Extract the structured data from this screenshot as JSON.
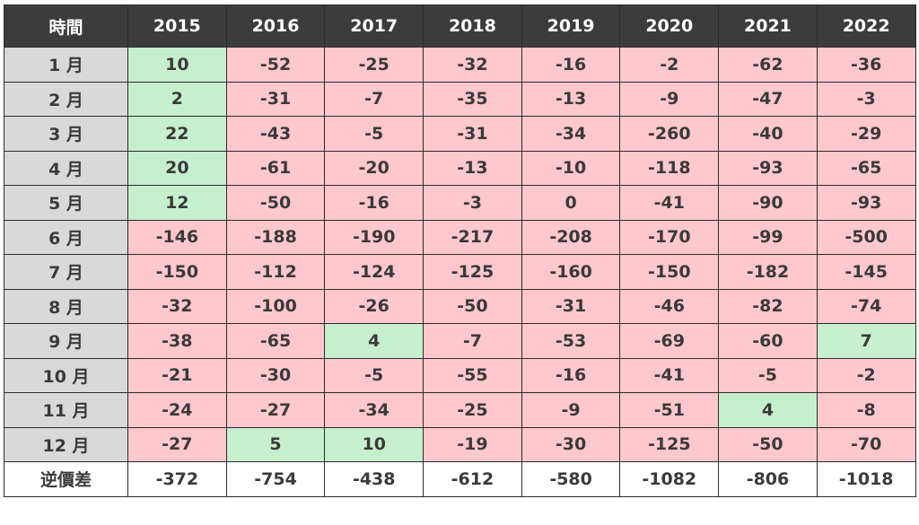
{
  "header": {
    "corner": "時間",
    "years": [
      "2015",
      "2016",
      "2017",
      "2018",
      "2019",
      "2020",
      "2021",
      "2022"
    ]
  },
  "rows": [
    {
      "label": "1 月",
      "values": [
        "10",
        "-52",
        "-25",
        "-32",
        "-16",
        "-2",
        "-62",
        "-36"
      ]
    },
    {
      "label": "2 月",
      "values": [
        "2",
        "-31",
        "-7",
        "-35",
        "-13",
        "-9",
        "-47",
        "-3"
      ]
    },
    {
      "label": "3 月",
      "values": [
        "22",
        "-43",
        "-5",
        "-31",
        "-34",
        "-260",
        "-40",
        "-29"
      ]
    },
    {
      "label": "4 月",
      "values": [
        "20",
        "-61",
        "-20",
        "-13",
        "-10",
        "-118",
        "-93",
        "-65"
      ]
    },
    {
      "label": "5 月",
      "values": [
        "12",
        "-50",
        "-16",
        "-3",
        "0",
        "-41",
        "-90",
        "-93"
      ]
    },
    {
      "label": "6 月",
      "values": [
        "-146",
        "-188",
        "-190",
        "-217",
        "-208",
        "-170",
        "-99",
        "-500"
      ]
    },
    {
      "label": "7 月",
      "values": [
        "-150",
        "-112",
        "-124",
        "-125",
        "-160",
        "-150",
        "-182",
        "-145"
      ]
    },
    {
      "label": "8 月",
      "values": [
        "-32",
        "-100",
        "-26",
        "-50",
        "-31",
        "-46",
        "-82",
        "-74"
      ]
    },
    {
      "label": "9 月",
      "values": [
        "-38",
        "-65",
        "4",
        "-7",
        "-53",
        "-69",
        "-60",
        "7"
      ]
    },
    {
      "label": "10 月",
      "values": [
        "-21",
        "-30",
        "-5",
        "-55",
        "-16",
        "-41",
        "-5",
        "-2"
      ]
    },
    {
      "label": "11 月",
      "values": [
        "-24",
        "-27",
        "-34",
        "-25",
        "-9",
        "-51",
        "4",
        "-8"
      ]
    },
    {
      "label": "12 月",
      "values": [
        "-27",
        "5",
        "10",
        "-19",
        "-30",
        "-125",
        "-50",
        "-70"
      ]
    }
  ],
  "green_cells": [
    [
      0,
      0
    ],
    [
      1,
      0
    ],
    [
      2,
      0
    ],
    [
      3,
      0
    ],
    [
      4,
      0
    ],
    [
      8,
      2
    ],
    [
      8,
      7
    ],
    [
      10,
      6
    ],
    [
      11,
      1
    ],
    [
      11,
      2
    ]
  ],
  "total": {
    "label": "逆價差",
    "values": [
      "-372",
      "-754",
      "-438",
      "-612",
      "-580",
      "-1082",
      "-806",
      "-1018"
    ]
  },
  "colors": {
    "header_bg": "#3c3c3c",
    "label_bg": "#d9d9d9",
    "positive_bg": "#c6efce",
    "negative_bg": "#ffc7ce"
  }
}
